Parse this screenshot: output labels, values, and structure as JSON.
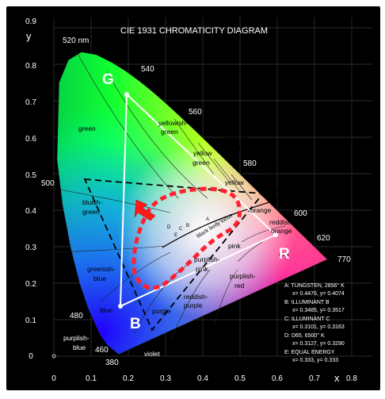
{
  "title": "CIE 1931 CHROMATICITY DIAGRAM",
  "axes": {
    "x_label": "x",
    "y_label": "y",
    "x_ticks": [
      "0",
      "0.1",
      "0.2",
      "0.3",
      "0.4",
      "0.5",
      "0.6",
      "0.7",
      "0.8"
    ],
    "y_ticks": [
      "0",
      "0.1",
      "0.2",
      "0.3",
      "0.4",
      "0.5",
      "0.6",
      "0.7",
      "0.8",
      "0.9"
    ]
  },
  "wavelength_labels": [
    "520 nm",
    "540",
    "560",
    "580",
    "600",
    "620",
    "770",
    "500",
    "480",
    "460",
    "380"
  ],
  "region_labels": {
    "green": "green",
    "yellowish_green": [
      "yellowish-",
      "green"
    ],
    "yellow_green": [
      "yellow",
      "green"
    ],
    "greenish_yellow": [
      "greenish-",
      "yellow"
    ],
    "yellow": "yellow",
    "yellow_orange": [
      "yellow",
      "orange"
    ],
    "yellowish_pink": [
      "yellowish-",
      "pink"
    ],
    "orange": "orange",
    "reddish_orange": [
      "reddish-",
      "orange"
    ],
    "bluish_green": [
      "bluish-",
      "green"
    ],
    "greenish_blue": [
      "greenish-",
      "blue"
    ],
    "blue": "blue",
    "purplish_blue": [
      "purplish-",
      "blue"
    ],
    "violet": "violet",
    "purple": "purple",
    "reddish_purple": [
      "reddish-",
      "purple"
    ],
    "purplish_red": [
      "purplish-",
      "red"
    ],
    "purplish_pink": [
      "purplish-",
      "pink"
    ],
    "pink": "pink",
    "red": "red",
    "black_body_locus": "black body locus"
  },
  "primaries": {
    "g": "G",
    "r": "R",
    "b": "B"
  },
  "locus_points": [
    "D",
    "C",
    "E",
    "B",
    "A"
  ],
  "legend": [
    {
      "name": "A:  TUNGSTEN, 2856° K",
      "coords": "x= 0.4476, y= 0.4074"
    },
    {
      "name": "B:  ILLUMINANT B",
      "coords": "x= 0.3485, y= 0.3517"
    },
    {
      "name": "C:  ILLUMINANT C",
      "coords": "x= 0.3101, y= 0.3163"
    },
    {
      "name": "D:  D65, 6500° K",
      "coords": "x= 0.3127, y= 0.3290"
    },
    {
      "name": "E:  EQUAL ENERGY",
      "coords": "x= 0.333, y= 0.333"
    }
  ],
  "colors": {
    "background": "#000000",
    "axis_text": "#ffffff",
    "gamut_solid": "#ffffff",
    "gamut_dashed": "#000000",
    "highlight_dashed": "#ff2030",
    "arrow": "#ff1a1a"
  }
}
